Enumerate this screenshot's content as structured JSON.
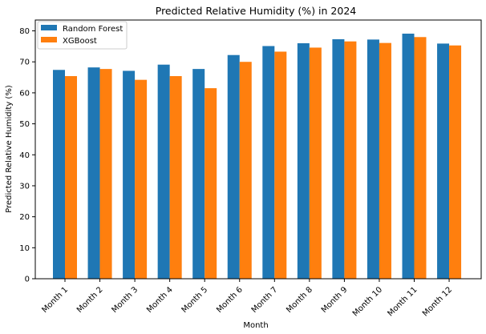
{
  "chart_data": {
    "type": "bar",
    "title": "Predicted Relative Humidity (%) in 2024",
    "xlabel": "Month",
    "ylabel": "Predicted Relative Humidity (%)",
    "ylim": [
      0,
      83.5
    ],
    "yticks": [
      0,
      10,
      20,
      30,
      40,
      50,
      60,
      70,
      80
    ],
    "grid": false,
    "legend_position": "top-left",
    "categories": [
      "Month 1",
      "Month 2",
      "Month 3",
      "Month 4",
      "Month 5",
      "Month 6",
      "Month 7",
      "Month 8",
      "Month 9",
      "Month 10",
      "Month 11",
      "Month 12"
    ],
    "series": [
      {
        "name": "Random Forest",
        "color": "#1f77b4",
        "values": [
          67.4,
          68.2,
          67.1,
          69.1,
          67.7,
          72.2,
          75.1,
          76.0,
          77.3,
          77.2,
          79.1,
          75.9
        ]
      },
      {
        "name": "XGBoost",
        "color": "#ff7f0e",
        "values": [
          65.4,
          67.7,
          64.2,
          65.4,
          61.5,
          70.0,
          73.3,
          74.6,
          76.6,
          76.1,
          78.0,
          75.3
        ]
      }
    ]
  }
}
